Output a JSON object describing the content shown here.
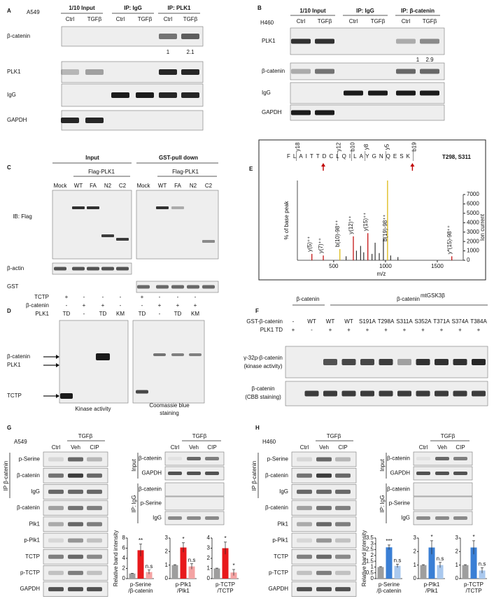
{
  "panels": {
    "A": {
      "letter": "A",
      "cell_line": "A549",
      "groups": [
        "1/10 Input",
        "IP: IgG",
        "IP: PLK1"
      ],
      "lanes": [
        "Ctrl",
        "TGFβ",
        "Ctrl",
        "TGFβ",
        "Ctrl",
        "TGFβ"
      ],
      "rows": [
        "β-catenin",
        "PLK1",
        "IgG",
        "GAPDH"
      ],
      "quant": [
        1,
        2.1
      ]
    },
    "B": {
      "letter": "B",
      "cell_line": "H460",
      "groups": [
        "1/10 Input",
        "IP: IgG",
        "IP: β-catenin"
      ],
      "lanes": [
        "Ctrl",
        "TGFβ",
        "Ctrl",
        "TGFβ",
        "Ctrl",
        "TGFβ"
      ],
      "rows": [
        "PLK1",
        "β-catenin",
        "IgG",
        "GAPDH"
      ],
      "quant": [
        1,
        2.9
      ]
    },
    "C": {
      "letter": "C",
      "groups": [
        "Input",
        "GST-pull down"
      ],
      "constructs": [
        "Flag-PLK1",
        "Flag-PLK1"
      ],
      "lanes": [
        "Mock",
        "WT",
        "FA",
        "N2",
        "C2",
        "Mock",
        "WT",
        "FA",
        "N2",
        "C2"
      ],
      "probe": "IB: Flag",
      "rows": [
        "β-actin",
        "GST"
      ]
    },
    "D": {
      "letter": "D",
      "conditions": [
        {
          "label": "TCTP",
          "signs": [
            "+",
            "-",
            "-",
            "-",
            "+",
            "-",
            "-",
            "-"
          ]
        },
        {
          "label": "β-catenin",
          "signs": [
            "-",
            "+",
            "+",
            "-",
            "-",
            "+",
            "+",
            "+"
          ]
        },
        {
          "label": "PLK1",
          "signs": [
            "TD",
            "-",
            "TD",
            "KM",
            "TD",
            "-",
            "TD",
            "KM"
          ]
        }
      ],
      "bands": [
        "β-catenin",
        "PLK1",
        "TCTP"
      ],
      "caption_left": "Kinase activity",
      "caption_right_lines": [
        "Coomassie blue",
        "staining"
      ]
    },
    "E": {
      "letter": "E",
      "sequence": "FLAITTDCLQILAYGNQESK",
      "sites": "T298, S311",
      "fragment_ions": [
        "y18",
        "y12",
        "y8",
        "y5",
        "b10",
        "b19"
      ]
    },
    "F": {
      "letter": "F",
      "groups": [
        "β-catenin",
        "β-catenin"
      ],
      "group_sup": "mtGSK3β",
      "row_labels": [
        "GST-β-catenin",
        "PLK1 TD"
      ],
      "gst": [
        "-",
        "WT",
        "WT",
        "WT",
        "S191A",
        "T298A",
        "S311A",
        "S352A",
        "T371A",
        "S374A",
        "T384A"
      ],
      "plk1": [
        "+",
        "-",
        "+",
        "+",
        "+",
        "+",
        "+",
        "+",
        "+",
        "+",
        "+"
      ],
      "blot_labels": [
        [
          "γ-32p-β-catenin",
          "(kinase activity)"
        ],
        [
          "β-catenin",
          "(CBB staining)"
        ]
      ]
    },
    "G": {
      "letter": "G",
      "cell_line": "A549",
      "treat": "TGFβ",
      "lanes": [
        "Ctrl",
        "Veh",
        "CIP"
      ],
      "ip_label": "IP β-catenin",
      "rows": [
        "p-Serine",
        "β-catenin",
        "IgG",
        "β-catenin",
        "Plk1",
        "p-Plk1",
        "TCTP",
        "p-TCTP",
        "GAPDH"
      ],
      "treat2": "TGFβ",
      "lanes2": [
        "Ctrl",
        "Veh",
        "CIP"
      ],
      "input_label": "Input",
      "input_rows": [
        "β-catenin",
        "GAPDH"
      ],
      "igg_label": "IP: IgG",
      "igg_rows": [
        "β-catenin",
        "p-Serine",
        "IgG"
      ]
    },
    "H": {
      "letter": "H",
      "cell_line": "H460",
      "treat": "TGFβ",
      "lanes": [
        "Ctrl",
        "Veh",
        "CIP"
      ],
      "ip_label": "IP β-catenin",
      "rows": [
        "p-Serine",
        "β-catenin",
        "IgG",
        "β-catenin",
        "Plk1",
        "p-Plk1",
        "TCTP",
        "p-TCTP",
        "GAPDH"
      ],
      "treat2": "TGFβ",
      "lanes2": [
        "Ctrl",
        "Veh",
        "CIP"
      ],
      "input_label": "Input",
      "input_rows": [
        "β-catenin",
        "GAPDH"
      ],
      "igg_label": "IP: IgG",
      "igg_rows": [
        "β-catenin",
        "p-Serine",
        "IgG"
      ]
    }
  },
  "chart_data": [
    {
      "type": "spectrum",
      "x_label": "m/z",
      "y_label": "% of base peak",
      "y2_label": "Ion current",
      "xlim": [
        150,
        1750
      ],
      "xticks": [
        500,
        1000,
        1500
      ],
      "ylim": [
        0,
        100
      ],
      "y2lim": [
        0,
        7000
      ],
      "y2ticks": [
        0,
        1000,
        2000,
        3000,
        4000,
        5000,
        6000,
        7000
      ],
      "x": [
        290,
        400,
        560,
        620,
        690,
        720,
        760,
        790,
        830,
        870,
        900,
        940,
        980,
        1020,
        1050,
        1120,
        1640
      ],
      "values": [
        8,
        6,
        14,
        5,
        30,
        12,
        18,
        10,
        34,
        8,
        22,
        9,
        28,
        100,
        6,
        4,
        5
      ],
      "peak_labels": [
        "y(5)⁺⁺",
        "y(7)⁺⁺",
        "b(10)-98⁺⁺",
        null,
        "y(12)⁺⁺",
        null,
        null,
        null,
        "y(15)⁺⁺",
        null,
        null,
        null,
        null,
        "b(19)-98⁺⁺",
        null,
        null,
        "y*(15)-98⁺⁺"
      ],
      "peak_colors": [
        "#c00000",
        "#c00000",
        "#d9b400",
        "#333333",
        "#c00000",
        "#333333",
        "#333333",
        "#333333",
        "#c00000",
        "#333333",
        "#333333",
        "#333333",
        "#333333",
        "#d9b400",
        "#333333",
        "#333333",
        "#c00000"
      ]
    },
    {
      "type": "bar",
      "y_label": "Relative band intensity",
      "x_label_lines": [
        "p-Serine",
        "/β-catenin"
      ],
      "ylim": [
        0,
        8
      ],
      "yticks": [
        0,
        2,
        4,
        6,
        8
      ],
      "values": [
        1,
        5.6,
        1.3
      ],
      "errors": [
        0.05,
        1.2,
        0.4
      ],
      "colors": [
        "#9e9e9e",
        "#e8191c",
        "#f4a3a3"
      ],
      "sig": [
        null,
        "**",
        "n.s"
      ]
    },
    {
      "type": "bar",
      "x_label_lines": [
        "p-Plk1",
        "/Plk1"
      ],
      "ylim": [
        0,
        3
      ],
      "yticks": [
        0,
        1,
        2,
        3
      ],
      "values": [
        1,
        2.3,
        0.9
      ],
      "errors": [
        0.03,
        0.35,
        0.2
      ],
      "colors": [
        "#9e9e9e",
        "#e8191c",
        "#f4a3a3"
      ],
      "sig": [
        null,
        "*",
        "n.s"
      ]
    },
    {
      "type": "bar",
      "x_label_lines": [
        "p-TCTP",
        "/TCTP"
      ],
      "ylim": [
        0,
        4
      ],
      "yticks": [
        0,
        1,
        2,
        3,
        4
      ],
      "values": [
        1,
        3.0,
        0.6
      ],
      "errors": [
        0.03,
        0.6,
        0.3
      ],
      "colors": [
        "#9e9e9e",
        "#e8191c",
        "#f4a3a3"
      ],
      "sig": [
        null,
        "*",
        "*"
      ]
    },
    {
      "type": "bar",
      "y_label": "Relative band intensity",
      "x_label_lines": [
        "p-Serine",
        "/β-catenin"
      ],
      "ylim": [
        0,
        3.5
      ],
      "yticks": [
        0,
        0.5,
        1,
        1.5,
        2,
        2.5,
        3,
        3.5
      ],
      "values": [
        1,
        2.7,
        1.1
      ],
      "errors": [
        0.03,
        0.2,
        0.15
      ],
      "colors": [
        "#9e9e9e",
        "#3a7fd5",
        "#a9c8ee"
      ],
      "sig": [
        null,
        "***",
        "n.s"
      ]
    },
    {
      "type": "bar",
      "x_label_lines": [
        "p-Plk1",
        "/Plk1"
      ],
      "ylim": [
        0,
        3
      ],
      "yticks": [
        0,
        1,
        2,
        3
      ],
      "values": [
        1,
        2.3,
        1.0
      ],
      "errors": [
        0.03,
        0.5,
        0.2
      ],
      "colors": [
        "#9e9e9e",
        "#3a7fd5",
        "#a9c8ee"
      ],
      "sig": [
        null,
        "*",
        "n.s"
      ]
    },
    {
      "type": "bar",
      "x_label_lines": [
        "p-TCTP",
        "/TCTP"
      ],
      "ylim": [
        0,
        3
      ],
      "yticks": [
        0,
        1,
        2,
        3
      ],
      "values": [
        1,
        2.3,
        0.6
      ],
      "errors": [
        0.03,
        0.5,
        0.2
      ],
      "colors": [
        "#9e9e9e",
        "#3a7fd5",
        "#a9c8ee"
      ],
      "sig": [
        null,
        "*",
        "n.s"
      ]
    }
  ]
}
